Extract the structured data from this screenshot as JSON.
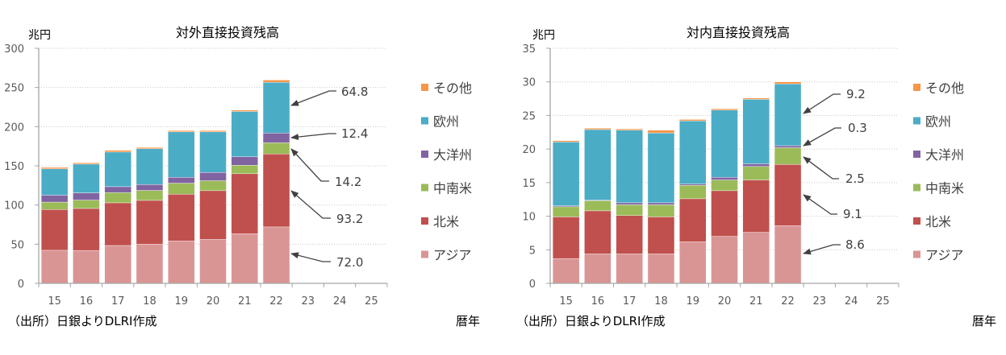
{
  "chart_data": [
    {
      "type": "bar",
      "stacked": true,
      "title": "対外直接投資残高",
      "ylabel": "兆円",
      "xlabel": "暦年",
      "source": "（出所）日銀よりDLRI作成",
      "categories": [
        "15",
        "16",
        "17",
        "18",
        "19",
        "20",
        "21",
        "22",
        "23",
        "24",
        "25"
      ],
      "ylim": [
        0,
        300
      ],
      "yticks": [
        0,
        50,
        100,
        150,
        200,
        250,
        300
      ],
      "grid": true,
      "legend_position": "right",
      "series": [
        {
          "name": "アジア",
          "color": "#d99594",
          "values": [
            42.2,
            42.0,
            48.3,
            50.0,
            54.2,
            56.2,
            63.4,
            72.0,
            null,
            null,
            null
          ]
        },
        {
          "name": "北米",
          "color": "#c0504d",
          "values": [
            52.0,
            53.6,
            54.5,
            55.9,
            59.6,
            62.1,
            76.5,
            93.2,
            null,
            null,
            null
          ]
        },
        {
          "name": "中南米",
          "color": "#9bbb59",
          "values": [
            9.5,
            10.7,
            13.1,
            12.7,
            14.1,
            12.7,
            10.9,
            14.2,
            null,
            null,
            null
          ]
        },
        {
          "name": "大洋州",
          "color": "#8064a2",
          "values": [
            8.9,
            9.2,
            7.5,
            7.6,
            7.5,
            10.6,
            10.7,
            12.4,
            null,
            null,
            null
          ]
        },
        {
          "name": "欧州",
          "color": "#4bacc6",
          "values": [
            33.6,
            36.7,
            44.2,
            45.6,
            57.9,
            51.7,
            57.9,
            64.8,
            null,
            null,
            null
          ]
        },
        {
          "name": "その他",
          "color": "#f79646",
          "values": [
            1.8,
            1.7,
            2.1,
            1.7,
            1.7,
            1.7,
            1.7,
            2.9,
            null,
            null,
            null
          ]
        }
      ],
      "annotations": [
        "64.8",
        "12.4",
        "14.2",
        "93.2",
        "72.0"
      ]
    },
    {
      "type": "bar",
      "stacked": true,
      "title": "対内直接投資残高",
      "ylabel": "兆円",
      "xlabel": "暦年",
      "source": "（出所）日銀よりDLRI作成",
      "categories": [
        "15",
        "16",
        "17",
        "18",
        "19",
        "20",
        "21",
        "22",
        "23",
        "24",
        "25"
      ],
      "ylim": [
        0,
        35
      ],
      "yticks": [
        0,
        5,
        10,
        15,
        20,
        25,
        30,
        35
      ],
      "grid": true,
      "legend_position": "right",
      "series": [
        {
          "name": "アジア",
          "color": "#d99594",
          "values": [
            3.7,
            4.4,
            4.4,
            4.4,
            6.2,
            7.0,
            7.6,
            8.6,
            null,
            null,
            null
          ]
        },
        {
          "name": "北米",
          "color": "#c0504d",
          "values": [
            6.2,
            6.4,
            5.7,
            5.5,
            6.4,
            6.8,
            7.8,
            9.1,
            null,
            null,
            null
          ]
        },
        {
          "name": "中南米",
          "color": "#9bbb59",
          "values": [
            1.5,
            1.5,
            1.6,
            1.8,
            2.0,
            1.6,
            2.0,
            2.5,
            null,
            null,
            null
          ]
        },
        {
          "name": "大洋州",
          "color": "#8064a2",
          "values": [
            0.15,
            0.1,
            0.3,
            0.3,
            0.2,
            0.4,
            0.4,
            0.3,
            null,
            null,
            null
          ]
        },
        {
          "name": "欧州",
          "color": "#4bacc6",
          "values": [
            9.5,
            10.5,
            10.8,
            10.4,
            9.4,
            10.0,
            9.6,
            9.2,
            null,
            null,
            null
          ]
        },
        {
          "name": "その他",
          "color": "#f79646",
          "values": [
            0.2,
            0.2,
            0.2,
            0.4,
            0.2,
            0.2,
            0.2,
            0.3,
            null,
            null,
            null
          ]
        }
      ],
      "annotations": [
        "9.2",
        "0.3",
        "2.5",
        "9.1",
        "8.6"
      ]
    }
  ]
}
